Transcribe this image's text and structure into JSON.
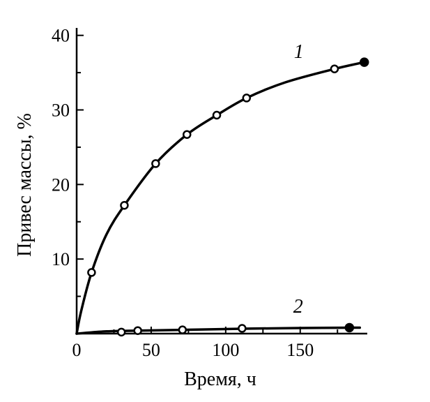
{
  "chart_data": {
    "type": "line",
    "title": "",
    "xlabel": "Время, ч",
    "ylabel": "Привес массы, %",
    "xlim": [
      0,
      195
    ],
    "ylim": [
      0,
      41
    ],
    "xticks": [
      0,
      50,
      100,
      150
    ],
    "yticks": [
      10,
      20,
      30,
      40
    ],
    "x_minor_ticks": [
      25,
      75,
      125,
      175
    ],
    "y_minor_ticks": [
      5,
      15,
      25,
      35
    ],
    "grid": false,
    "series": [
      {
        "name": "1",
        "color": "#000000",
        "points": [
          {
            "x": 10,
            "y": 8.2
          },
          {
            "x": 32,
            "y": 17.2
          },
          {
            "x": 53,
            "y": 22.8
          },
          {
            "x": 74,
            "y": 26.7
          },
          {
            "x": 94,
            "y": 29.3
          },
          {
            "x": 114,
            "y": 31.6
          },
          {
            "x": 173,
            "y": 35.5
          },
          {
            "x": 193,
            "y": 36.4
          }
        ],
        "curve": [
          [
            0,
            0
          ],
          [
            3,
            3
          ],
          [
            10,
            8.2
          ],
          [
            20,
            13.3
          ],
          [
            32,
            17.2
          ],
          [
            53,
            22.8
          ],
          [
            74,
            26.7
          ],
          [
            94,
            29.3
          ],
          [
            114,
            31.6
          ],
          [
            140,
            33.7
          ],
          [
            173,
            35.5
          ],
          [
            193,
            36.4
          ]
        ]
      },
      {
        "name": "2",
        "color": "#000000",
        "points": [
          {
            "x": 30,
            "y": 0.2
          },
          {
            "x": 41,
            "y": 0.4
          },
          {
            "x": 71,
            "y": 0.5
          },
          {
            "x": 111,
            "y": 0.7
          },
          {
            "x": 183,
            "y": 0.8
          }
        ],
        "curve": [
          [
            0,
            0
          ],
          [
            20,
            0.3
          ],
          [
            41,
            0.4
          ],
          [
            71,
            0.5
          ],
          [
            111,
            0.65
          ],
          [
            150,
            0.75
          ],
          [
            190,
            0.8
          ]
        ]
      }
    ]
  }
}
